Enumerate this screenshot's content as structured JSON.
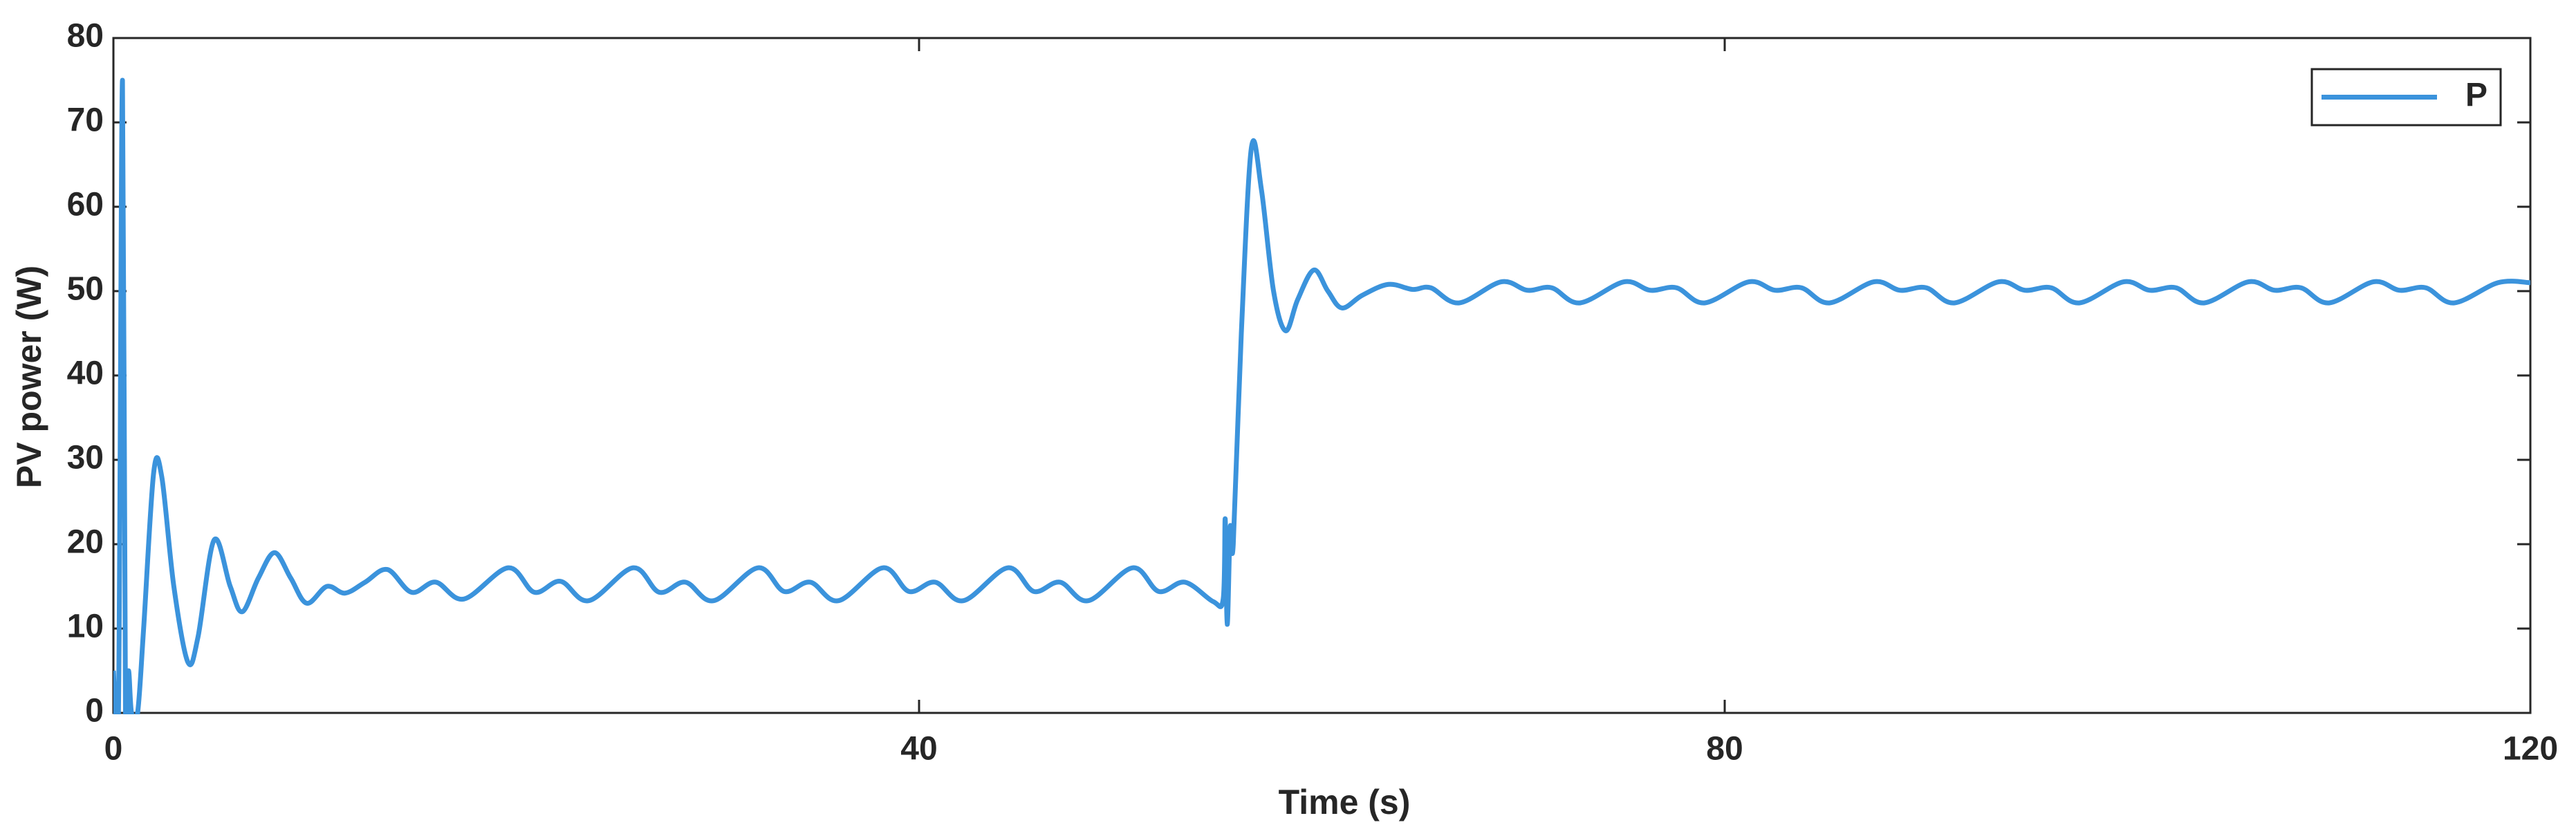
{
  "chart_data": {
    "type": "line",
    "xlabel": "Time (s)",
    "ylabel": "PV power (W)",
    "x": [
      0,
      0.25,
      0.45,
      0.6,
      0.75,
      0.9,
      1.2,
      1.5,
      2.0,
      2.4,
      3.0,
      3.7,
      4.2,
      5.0,
      5.8,
      6.4,
      7.2,
      8.0,
      8.8,
      9.6,
      10.6,
      11.5,
      12.5,
      13.6,
      14.8,
      16.0,
      17.4,
      19.6,
      20.9,
      22.2,
      23.6,
      25.8,
      27.1,
      28.4,
      29.8,
      32.0,
      33.3,
      34.6,
      36.0,
      38.2,
      39.5,
      40.8,
      42.2,
      44.4,
      45.7,
      47.0,
      48.4,
      50.6,
      51.9,
      53.2,
      54.6,
      55.1,
      55.2,
      55.3,
      55.45,
      55.6,
      56.0,
      56.5,
      57.0,
      57.6,
      58.2,
      58.8,
      59.6,
      60.3,
      61.0,
      62.0,
      63.3,
      64.5,
      65.4,
      66.8,
      68.9,
      70.2,
      71.4,
      72.8,
      75.0,
      76.3,
      77.6,
      79.0,
      81.2,
      82.5,
      83.8,
      85.2,
      87.4,
      88.7,
      90.0,
      91.4,
      93.6,
      94.9,
      96.2,
      97.6,
      99.8,
      101.1,
      102.4,
      103.8,
      106.0,
      107.3,
      108.6,
      110.0,
      112.2,
      113.5,
      114.8,
      116.2,
      118.4,
      120
    ],
    "series": [
      {
        "name": "P",
        "color": "#3b93dc",
        "values": [
          5,
          0,
          75,
          0,
          5,
          0,
          0,
          10,
          28.5,
          28,
          15,
          6,
          9,
          20.5,
          15,
          12,
          16,
          19,
          16,
          13,
          15,
          14.2,
          15.5,
          17,
          14.3,
          15.5,
          13.5,
          17.2,
          14.3,
          15.6,
          13.3,
          17.2,
          14.3,
          15.5,
          13.3,
          17.2,
          14.4,
          15.5,
          13.3,
          17.2,
          14.4,
          15.5,
          13.3,
          17.2,
          14.4,
          15.5,
          13.3,
          17.2,
          14.4,
          15.5,
          13.2,
          13.5,
          23,
          10.5,
          22,
          20,
          45,
          67,
          62,
          50,
          45.3,
          49,
          52.5,
          50,
          48,
          49.5,
          50.8,
          50.2,
          50.4,
          48.6,
          51.1,
          50.1,
          50.4,
          48.6,
          51.1,
          50.1,
          50.4,
          48.6,
          51.1,
          50.1,
          50.4,
          48.6,
          51.1,
          50.1,
          50.4,
          48.6,
          51.1,
          50.1,
          50.4,
          48.6,
          51.1,
          50.1,
          50.4,
          48.6,
          51.1,
          50.1,
          50.4,
          48.6,
          51.1,
          50.1,
          50.4,
          48.6,
          51.0,
          51
        ]
      }
    ],
    "xlim": [
      0,
      120
    ],
    "xticks": [
      0,
      40,
      80,
      120
    ],
    "ylim": [
      0,
      80
    ],
    "yticks": [
      0,
      10,
      20,
      30,
      40,
      50,
      60,
      70,
      80
    ],
    "grid": false,
    "legend": "upper right"
  }
}
